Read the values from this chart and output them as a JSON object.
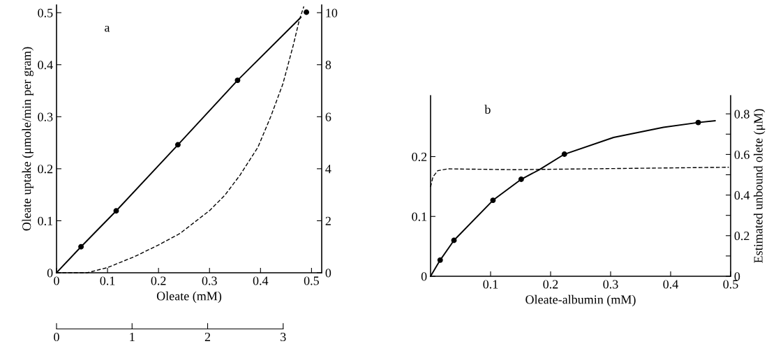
{
  "chart_data": [
    {
      "type": "line",
      "xlabel": "Oleate (mM)",
      "ylabel": "Oleate uptake (μmole/min per gram)",
      "annotations": [
        "a"
      ],
      "xlim": [
        0,
        0.52
      ],
      "xticks": [
        0,
        0.1,
        0.2,
        0.3,
        0.4,
        0.5
      ],
      "ylim": [
        0,
        0.515
      ],
      "yticks": [
        0,
        0.1,
        0.2,
        0.3,
        0.4,
        0.5
      ],
      "y2lim": [
        0,
        10.3
      ],
      "y2ticks": [
        0,
        2,
        4,
        6,
        8,
        10
      ],
      "x2lim": [
        0,
        3.51
      ],
      "x2ticks": [
        0,
        1,
        2,
        3
      ],
      "grid": false,
      "legend": false,
      "series": [
        {
          "color": "#000000",
          "line_style": "solid",
          "marker": "none",
          "x": [
            0,
            0.048,
            0.117,
            0.238,
            0.355,
            0.479
          ],
          "values": [
            0,
            0.05,
            0.119,
            0.246,
            0.37,
            0.491
          ]
        },
        {
          "type": "scatter",
          "color": "#000000",
          "marker": "circle",
          "x": [
            0.048,
            0.117,
            0.238,
            0.355,
            0.49
          ],
          "values": [
            0.05,
            0.119,
            0.246,
            0.37,
            0.501
          ]
        },
        {
          "type": "line",
          "axis": "y2",
          "color": "#000000",
          "line_style": "dashed",
          "marker": "none",
          "x": [
            0,
            0.06,
            0.1,
            0.154,
            0.2,
            0.242,
            0.3,
            0.33,
            0.36,
            0.395,
            0.42,
            0.444,
            0.464,
            0.476,
            0.485
          ],
          "values": [
            0,
            0,
            0.2,
            0.63,
            1.07,
            1.51,
            2.39,
            2.98,
            3.76,
            4.83,
            6.0,
            7.27,
            8.73,
            9.71,
            10.24
          ]
        }
      ]
    },
    {
      "type": "line",
      "xlabel": "Oleate-albumin (mM)",
      "y2label": "Estimated unbound olete (μM)",
      "annotations": [
        "b"
      ],
      "xlim": [
        0,
        0.5
      ],
      "xticks": [
        0.1,
        0.2,
        0.3,
        0.4,
        0.5
      ],
      "ylim": [
        0,
        0.302
      ],
      "yticks": [
        0,
        0.1,
        0.2
      ],
      "y2lim": [
        0,
        0.89
      ],
      "y2ticks": [
        0,
        {
          "value": 0.1,
          "label": null
        },
        0.2,
        {
          "value": 0.3,
          "label": null
        },
        0.4,
        {
          "value": 0.5,
          "label": null
        },
        0.6,
        {
          "value": 0.7,
          "label": null
        },
        0.8
      ],
      "grid": false,
      "legend": false,
      "series": [
        {
          "color": "#000000",
          "line_style": "solid",
          "marker": "none",
          "x": [
            0,
            0.016,
            0.039,
            0.104,
            0.151,
            0.181,
            0.223,
            0.305,
            0.388,
            0.446,
            0.474
          ],
          "values": [
            0,
            0.027,
            0.06,
            0.127,
            0.162,
            0.178,
            0.204,
            0.232,
            0.249,
            0.257,
            0.26
          ]
        },
        {
          "type": "scatter",
          "color": "#000000",
          "marker": "circle",
          "x": [
            0.016,
            0.039,
            0.104,
            0.151,
            0.223,
            0.446
          ],
          "values": [
            0.027,
            0.06,
            0.127,
            0.162,
            0.204,
            0.257
          ]
        },
        {
          "type": "line",
          "axis": "y2",
          "color": "#000000",
          "line_style": "dashed",
          "marker": "none",
          "x": [
            0,
            0.004,
            0.012,
            0.029,
            0.14,
            0.497
          ],
          "values": [
            0.44,
            0.49,
            0.52,
            0.529,
            0.525,
            0.537
          ]
        }
      ]
    }
  ]
}
